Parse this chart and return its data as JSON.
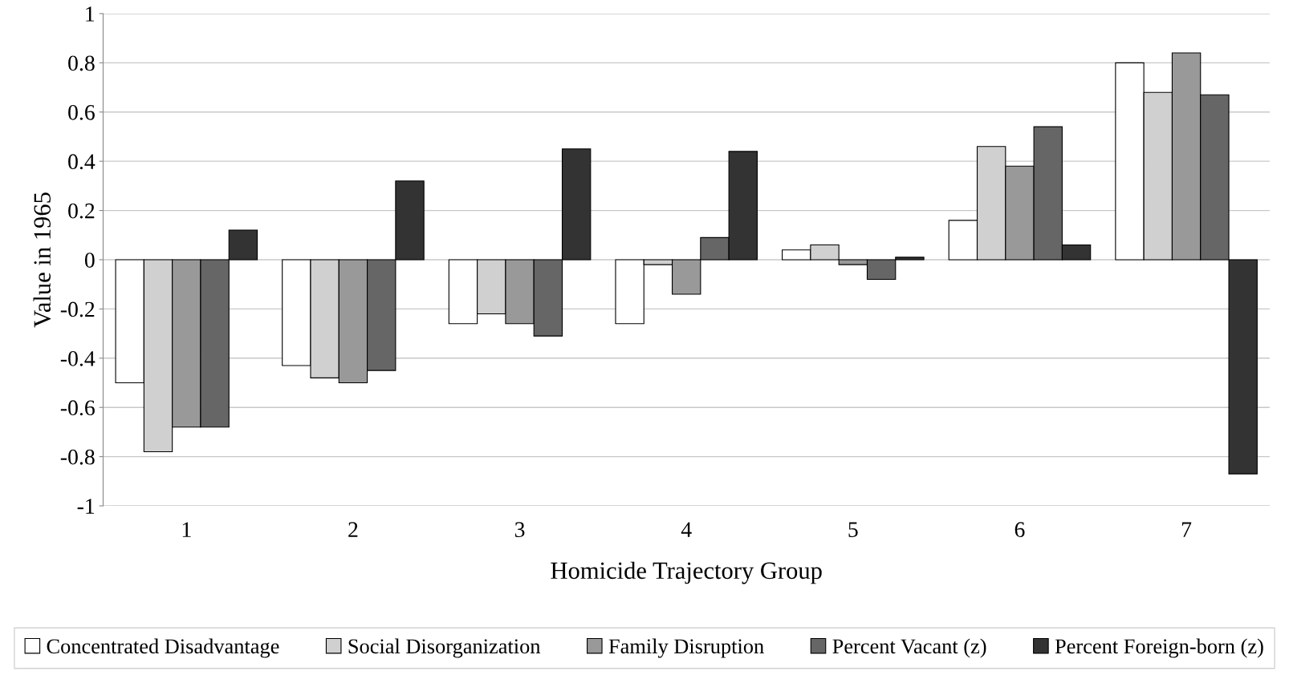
{
  "chart_data": {
    "type": "bar",
    "xlabel": "Homicide Trajectory Group",
    "ylabel": "Value in 1965",
    "categories": [
      "1",
      "2",
      "3",
      "4",
      "5",
      "6",
      "7"
    ],
    "series": [
      {
        "name": "Concentrated Disadvantage",
        "color": "#ffffff",
        "values": [
          -0.5,
          -0.43,
          -0.26,
          -0.26,
          0.04,
          0.16,
          0.8
        ]
      },
      {
        "name": "Social Disorganization",
        "color": "#d0d0d0",
        "values": [
          -0.78,
          -0.48,
          -0.22,
          -0.02,
          0.06,
          0.46,
          0.68
        ]
      },
      {
        "name": "Family Disruption",
        "color": "#999999",
        "values": [
          -0.68,
          -0.5,
          -0.26,
          -0.14,
          -0.02,
          0.38,
          0.84
        ]
      },
      {
        "name": "Percent Vacant (z)",
        "color": "#666666",
        "values": [
          -0.68,
          -0.45,
          -0.31,
          0.09,
          -0.08,
          0.54,
          0.67
        ]
      },
      {
        "name": "Percent Foreign-born (z)",
        "color": "#333333",
        "values": [
          0.12,
          0.32,
          0.45,
          0.44,
          0.01,
          0.06,
          -0.87
        ]
      }
    ],
    "ylim": [
      -1,
      1
    ],
    "yticks": [
      -1,
      -0.8,
      -0.6,
      -0.4,
      -0.2,
      0,
      0.2,
      0.4,
      0.6,
      0.8,
      1
    ],
    "grid": "y",
    "legend": "bottom"
  }
}
